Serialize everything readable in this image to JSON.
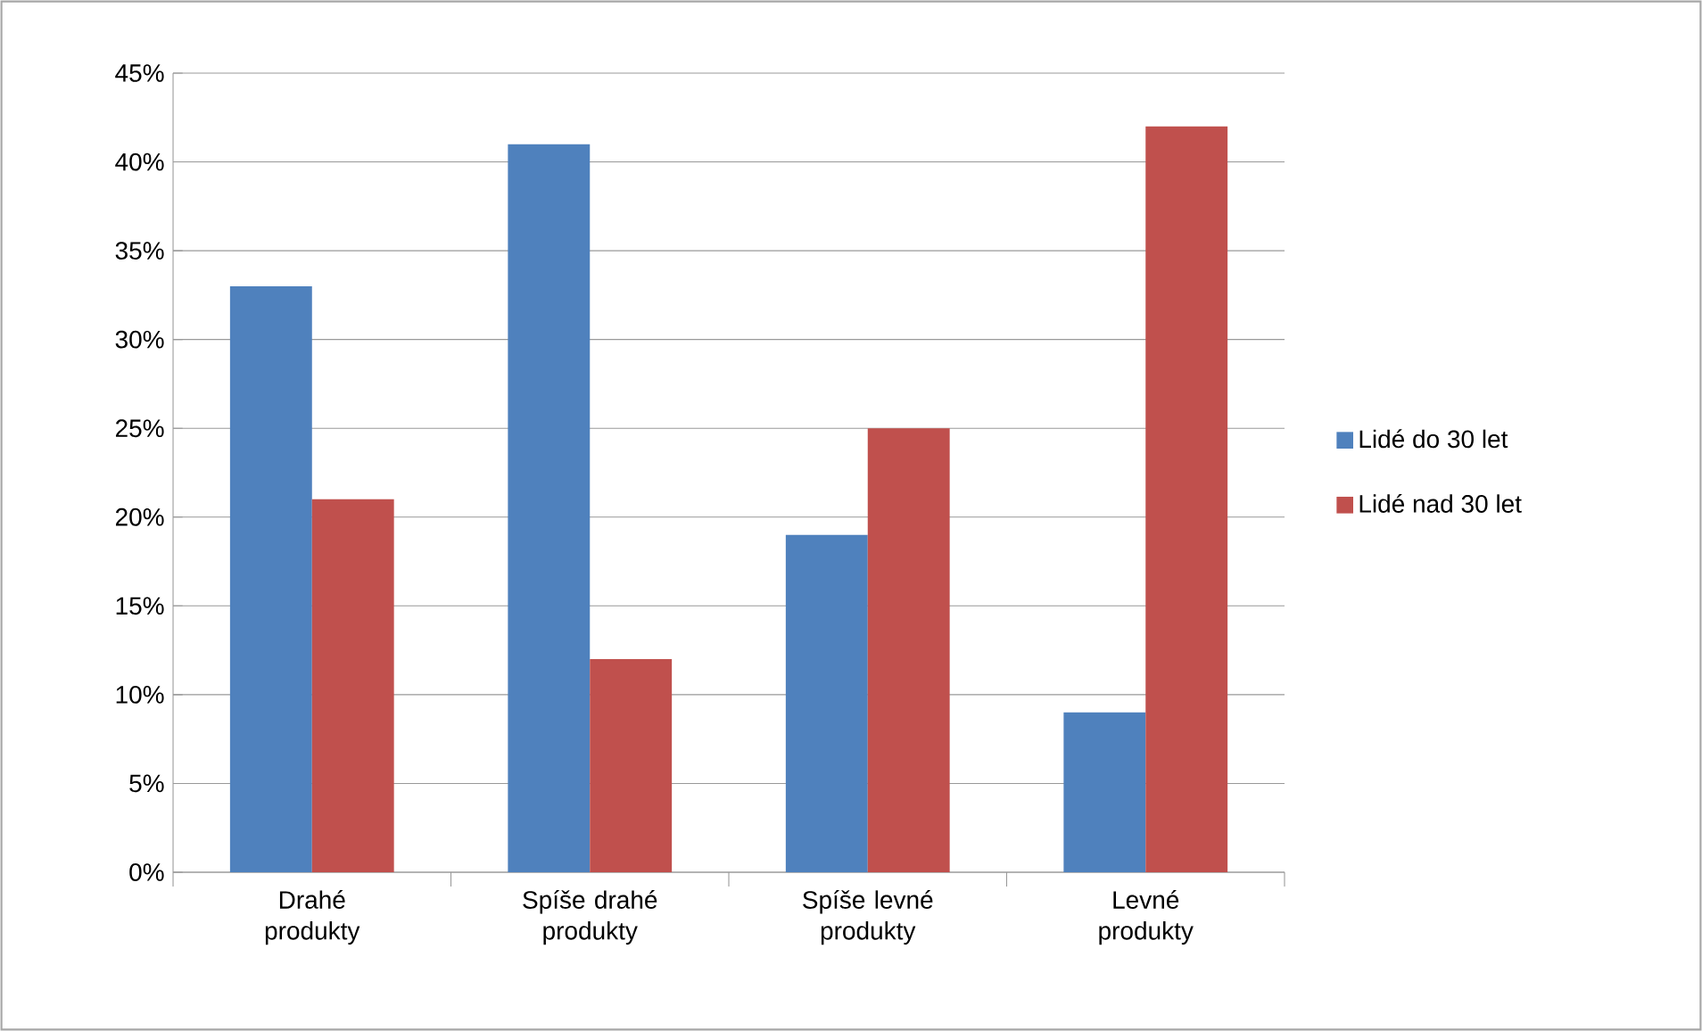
{
  "chart_data": {
    "type": "bar",
    "categories": [
      "Drahé produkty",
      "Spíše drahé produkty",
      "Spíše levné produkty",
      "Levné produkty"
    ],
    "series": [
      {
        "name": "Lidé do 30 let",
        "color": "#4f81bd",
        "values": [
          33,
          41,
          19,
          9
        ]
      },
      {
        "name": "Lidé nad 30 let",
        "color": "#c0504d",
        "values": [
          21,
          12,
          25,
          42
        ]
      }
    ],
    "ylim": [
      0,
      45
    ],
    "yticks": [
      {
        "value": 0,
        "label": "0%"
      },
      {
        "value": 5,
        "label": "5%"
      },
      {
        "value": 10,
        "label": "10%"
      },
      {
        "value": 15,
        "label": "15%"
      },
      {
        "value": 20,
        "label": "20%"
      },
      {
        "value": 25,
        "label": "25%"
      },
      {
        "value": 30,
        "label": "30%"
      },
      {
        "value": 35,
        "label": "35%"
      },
      {
        "value": 40,
        "label": "40%"
      },
      {
        "value": 45,
        "label": "45%"
      }
    ],
    "grid": "y",
    "legend": "right"
  }
}
